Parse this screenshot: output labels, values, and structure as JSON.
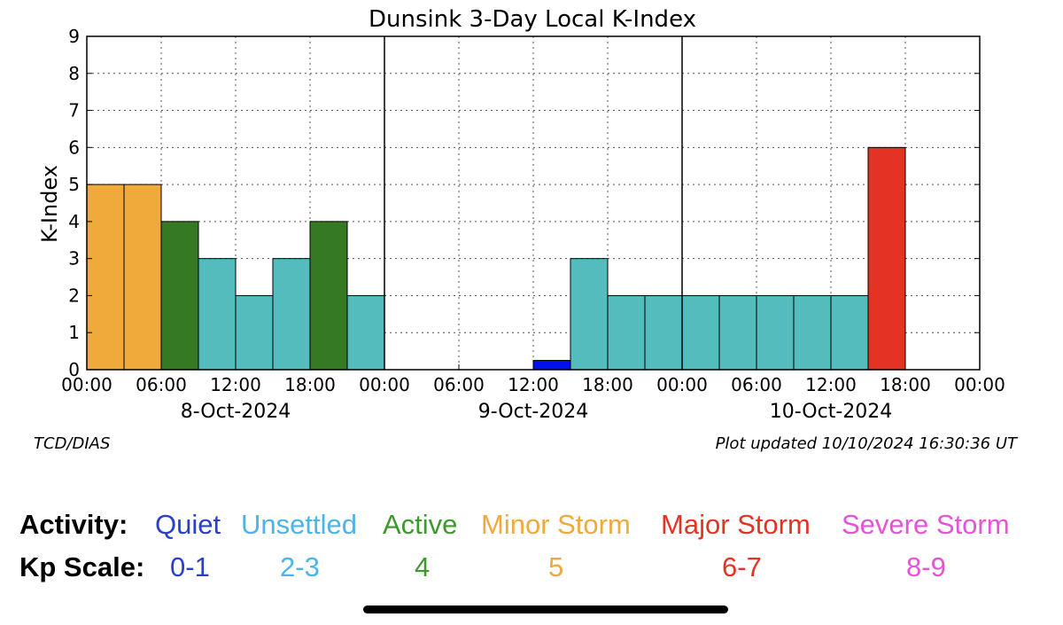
{
  "chart_data": {
    "type": "bar",
    "title": "Dunsink 3-Day Local K-Index",
    "ylabel": "K-Index",
    "xlabel": "",
    "ylim": [
      0,
      9
    ],
    "yticks": [
      "0",
      "1",
      "2",
      "3",
      "4",
      "5",
      "6",
      "7",
      "8",
      "9"
    ],
    "grid": true,
    "x_tick_labels": [
      "00:00",
      "06:00",
      "12:00",
      "18:00",
      "00:00",
      "06:00",
      "12:00",
      "18:00",
      "00:00",
      "06:00",
      "12:00",
      "18:00",
      "00:00"
    ],
    "dates": [
      "8-Oct-2024",
      "9-Oct-2024",
      "10-Oct-2024"
    ],
    "interval_hours": 3,
    "bars": [
      {
        "date": "8-Oct-2024",
        "start": "00:00",
        "k": 5,
        "color": "#F0A93B"
      },
      {
        "date": "8-Oct-2024",
        "start": "03:00",
        "k": 5,
        "color": "#F0A93B"
      },
      {
        "date": "8-Oct-2024",
        "start": "06:00",
        "k": 4,
        "color": "#357A22"
      },
      {
        "date": "8-Oct-2024",
        "start": "09:00",
        "k": 3,
        "color": "#55BCBE"
      },
      {
        "date": "8-Oct-2024",
        "start": "12:00",
        "k": 2,
        "color": "#55BCBE"
      },
      {
        "date": "8-Oct-2024",
        "start": "15:00",
        "k": 3,
        "color": "#55BCBE"
      },
      {
        "date": "8-Oct-2024",
        "start": "18:00",
        "k": 4,
        "color": "#357A22"
      },
      {
        "date": "8-Oct-2024",
        "start": "21:00",
        "k": 2,
        "color": "#55BCBE"
      },
      {
        "date": "9-Oct-2024",
        "start": "12:00",
        "k": 0.25,
        "color": "#0011EE"
      },
      {
        "date": "9-Oct-2024",
        "start": "15:00",
        "k": 3,
        "color": "#55BCBE"
      },
      {
        "date": "9-Oct-2024",
        "start": "18:00",
        "k": 2,
        "color": "#55BCBE"
      },
      {
        "date": "9-Oct-2024",
        "start": "21:00",
        "k": 2,
        "color": "#55BCBE"
      },
      {
        "date": "10-Oct-2024",
        "start": "00:00",
        "k": 2,
        "color": "#55BCBE"
      },
      {
        "date": "10-Oct-2024",
        "start": "03:00",
        "k": 2,
        "color": "#55BCBE"
      },
      {
        "date": "10-Oct-2024",
        "start": "06:00",
        "k": 2,
        "color": "#55BCBE"
      },
      {
        "date": "10-Oct-2024",
        "start": "09:00",
        "k": 2,
        "color": "#55BCBE"
      },
      {
        "date": "10-Oct-2024",
        "start": "12:00",
        "k": 2,
        "color": "#55BCBE"
      },
      {
        "date": "10-Oct-2024",
        "start": "15:00",
        "k": 6,
        "color": "#E43325"
      }
    ]
  },
  "credits": {
    "source": "TCD/DIAS",
    "updated": "Plot updated 10/10/2024  16:30:36 UT"
  },
  "legend": {
    "activity_heading": "Activity:",
    "kp_heading": "Kp Scale:",
    "levels": [
      {
        "activity": "Quiet",
        "kp": "0-1",
        "color": "#2B3FC8"
      },
      {
        "activity": "Unsettled",
        "kp": "2-3",
        "color": "#4BB4E8"
      },
      {
        "activity": "Active",
        "kp": "4",
        "color": "#3D9A2C"
      },
      {
        "activity": "Minor Storm",
        "kp": "5",
        "color": "#F0A93B"
      },
      {
        "activity": "Major Storm",
        "kp": "6-7",
        "color": "#E43325"
      },
      {
        "activity": "Severe Storm",
        "kp": "8-9",
        "color": "#E553D6"
      }
    ]
  }
}
